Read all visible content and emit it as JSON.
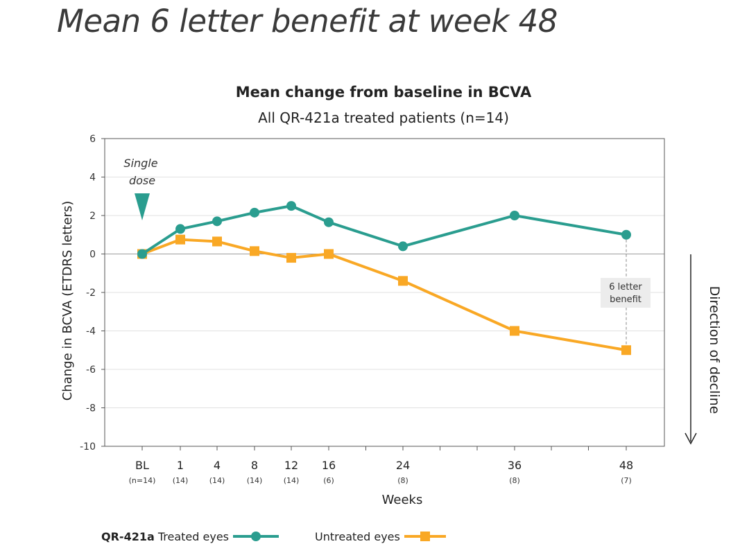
{
  "page": {
    "headline": "Mean 6 letter benefit at week 48"
  },
  "legend": {
    "treated_prefix": "QR-421a",
    "treated_label": "Treated eyes",
    "untreated_label": "Untreated eyes"
  },
  "annotations": {
    "single_dose_line1": "Single",
    "single_dose_line2": "dose",
    "benefit_line1": "6 letter",
    "benefit_line2": "benefit",
    "direction": "Direction of decline"
  },
  "chart_data": {
    "type": "line",
    "title": "Mean change from baseline in BCVA",
    "subtitle": "All QR-421a treated patients (n=14)",
    "xlabel": "Weeks",
    "ylabel": "Change in BCVA (ETDRS letters)",
    "ylim": [
      -10,
      6
    ],
    "yticks": [
      6,
      4,
      2,
      0,
      -2,
      -4,
      -6,
      -8,
      -10
    ],
    "x": [
      0,
      1,
      4,
      8,
      12,
      16,
      24,
      36,
      48
    ],
    "x_tick_labels": [
      "BL",
      "1",
      "4",
      "8",
      "12",
      "16",
      "24",
      "36",
      "48"
    ],
    "x_tick_sublabels": [
      "(n=14)",
      "(14)",
      "(14)",
      "(14)",
      "(14)",
      "(6)",
      "(8)",
      "(8)",
      "(7)"
    ],
    "grid": "horizontal",
    "legend_position": "bottom",
    "series": [
      {
        "name": "QR-421a Treated eyes",
        "marker": "circle",
        "color": "#2a9d8f",
        "values": [
          0,
          1.3,
          1.7,
          2.15,
          2.5,
          1.65,
          0.4,
          2.0,
          1.0
        ]
      },
      {
        "name": "Untreated eyes",
        "marker": "square",
        "color": "#f9a825",
        "values": [
          0,
          0.75,
          0.65,
          0.15,
          -0.2,
          0,
          -1.4,
          -4.0,
          -5.0
        ]
      }
    ]
  }
}
